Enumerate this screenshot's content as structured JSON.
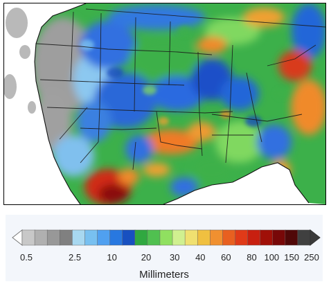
{
  "legend": {
    "units": "Millimeters",
    "ticks": [
      "0.5",
      "2.5",
      "10",
      "20",
      "30",
      "40",
      "60",
      "80",
      "100",
      "150",
      "250"
    ],
    "colors": [
      "#c8c8c8",
      "#b0b0b0",
      "#989898",
      "#808080",
      "#a8d8f0",
      "#78c0f0",
      "#50a0f0",
      "#2878e0",
      "#1850c0",
      "#30a840",
      "#50c050",
      "#90e060",
      "#d0f090",
      "#f0e070",
      "#f0c040",
      "#f09030",
      "#e86020",
      "#e03a18",
      "#c82010",
      "#a01008",
      "#780808",
      "#500808",
      "#404040"
    ]
  },
  "map": {
    "palette": {
      "ocean": "#ffffff",
      "gray": "#9a9a9a",
      "lightblue": "#80c8f0",
      "blue": "#3070e0",
      "darkblue": "#1848c0",
      "green": "#3cb04a",
      "lightgreen": "#80d860",
      "orange": "#f08a2a",
      "red": "#d02a18",
      "darkred": "#8a0c0c"
    }
  }
}
